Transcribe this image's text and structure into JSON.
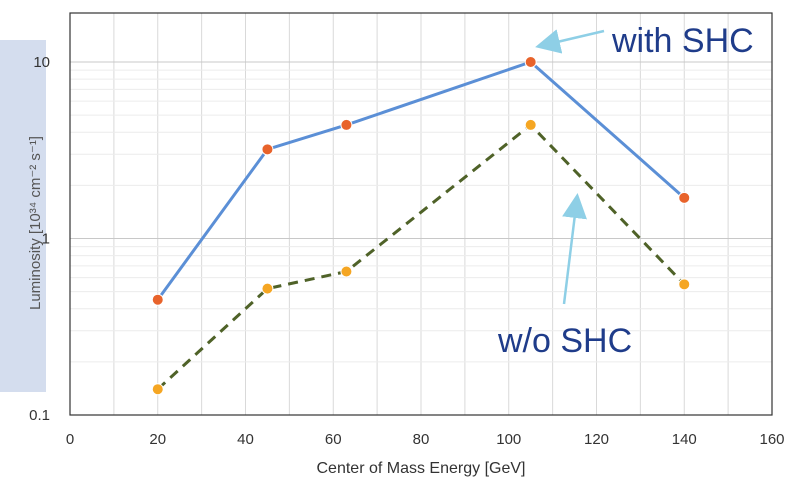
{
  "chart_data": {
    "type": "line",
    "xlabel": "Center of Mass Energy [GeV]",
    "ylabel": "Luminosity [10³⁴ cm⁻² s⁻¹]",
    "xlim": [
      0,
      160
    ],
    "ylim": [
      0.1,
      20
    ],
    "yscale": "log",
    "x_ticks": [
      "0",
      "20",
      "40",
      "60",
      "80",
      "100",
      "120",
      "140",
      "160"
    ],
    "y_ticks": [
      "0.1",
      "1",
      "10"
    ],
    "grid": true,
    "series": [
      {
        "name": "with SHC",
        "color": "#5b8fd6",
        "marker_color": "#e8632b",
        "dashed": false,
        "x": [
          20,
          45,
          63,
          105,
          140
        ],
        "y": [
          0.45,
          3.2,
          4.4,
          10,
          1.7
        ]
      },
      {
        "name": "w/o SHC",
        "color": "#4f6228",
        "marker_color": "#f5a623",
        "dashed": true,
        "x": [
          20,
          45,
          63,
          105,
          140
        ],
        "y": [
          0.14,
          0.52,
          0.65,
          4.4,
          0.55
        ]
      }
    ],
    "annotations": [
      {
        "text": "with SHC",
        "arrow_color": "#8ecfe6"
      },
      {
        "text": "w/o SHC",
        "arrow_color": "#8ecfe6"
      }
    ]
  }
}
